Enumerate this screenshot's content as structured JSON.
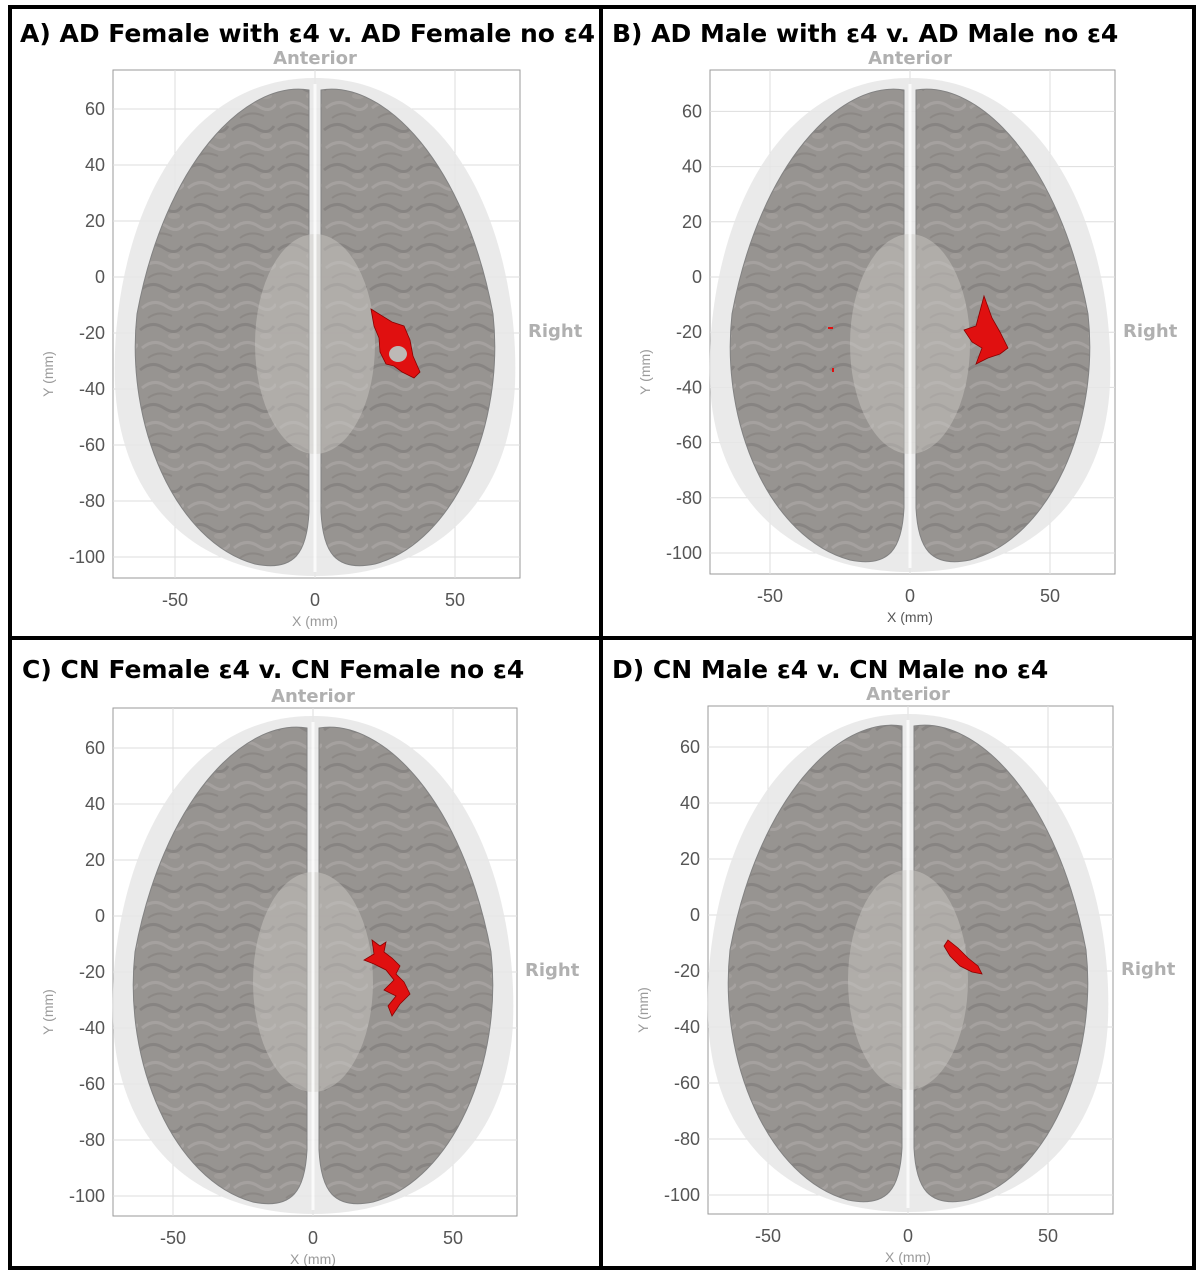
{
  "colors": {
    "border": "#000000",
    "brain_fill": "#8f8b88",
    "brain_outer": "#e6e6e6",
    "highlight": "#e01010",
    "grid": "#dddddd",
    "tick_text": "#555555",
    "orient_text": "#b0b0b0"
  },
  "panels": [
    {
      "title": "A) AD Female with ε4 v. AD Female no ε4",
      "anterior_label": "Anterior",
      "right_label": "Right",
      "x_label": "X (mm)",
      "y_label": "Y (mm)",
      "x_ticks": [
        "-50",
        "0",
        "50"
      ],
      "y_ticks": [
        "60",
        "40",
        "20",
        "0",
        "-20",
        "-40",
        "-60",
        "-80",
        "-100"
      ],
      "highlight_region": "right-posterior-periventricular"
    },
    {
      "title": "B) AD Male with ε4 v. AD Male no ε4",
      "anterior_label": "Anterior",
      "right_label": "Right",
      "x_label": "X (mm)",
      "y_label": "Y (mm)",
      "x_ticks": [
        "-50",
        "0",
        "50"
      ],
      "y_ticks": [
        "60",
        "40",
        "20",
        "0",
        "-20",
        "-40",
        "-60",
        "-80",
        "-100"
      ],
      "highlight_region": "right-posterior-periventricular"
    },
    {
      "title": "C) CN Female ε4 v. CN Female no ε4",
      "anterior_label": "Anterior",
      "right_label": "Right",
      "x_label": "X (mm)",
      "y_label": "Y (mm)",
      "x_ticks": [
        "-50",
        "0",
        "50"
      ],
      "y_ticks": [
        "60",
        "40",
        "20",
        "0",
        "-20",
        "-40",
        "-60",
        "-80",
        "-100"
      ],
      "highlight_region": "right-posterior-periventricular"
    },
    {
      "title": "D) CN Male ε4 v. CN Male no ε4",
      "anterior_label": "Anterior",
      "right_label": "Right",
      "x_label": "X (mm)",
      "y_label": "Y (mm)",
      "x_ticks": [
        "-50",
        "0",
        "50"
      ],
      "y_ticks": [
        "60",
        "40",
        "20",
        "0",
        "-20",
        "-40",
        "-60",
        "-80",
        "-100"
      ],
      "highlight_region": "right-periventricular"
    }
  ]
}
